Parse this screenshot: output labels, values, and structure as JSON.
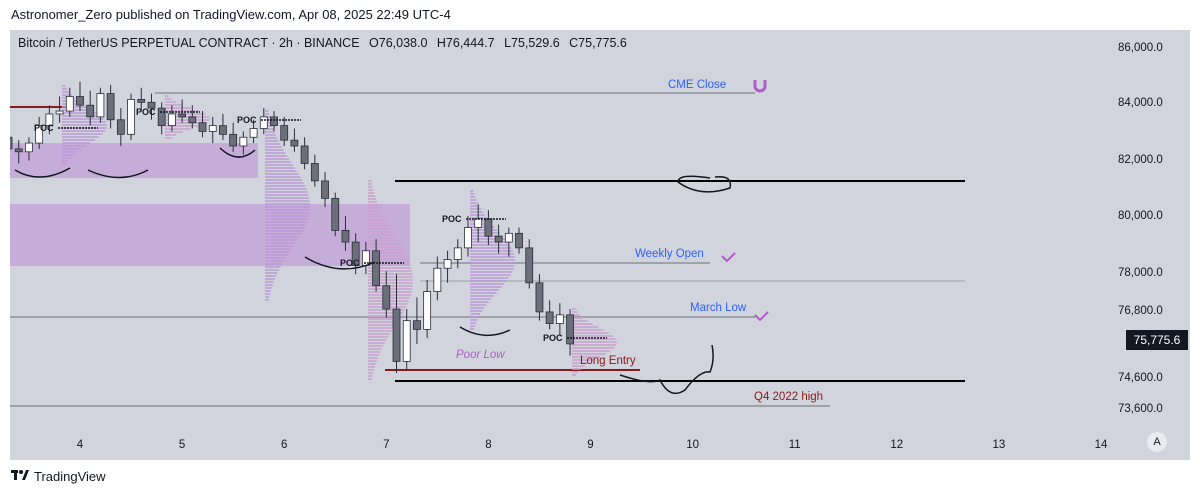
{
  "header": {
    "publisher_line": "Astronomer_Zero published on TradingView.com, Apr 08, 2025 22:49 UTC-4"
  },
  "symbol": {
    "name": "Bitcoin / TetherUS PERPETUAL CONTRACT · 2h · BINANCE",
    "open": "O76,038.0",
    "high": "H76,444.7",
    "low": "L75,529.6",
    "close": "C75,775.6"
  },
  "last_price_label": "75,775.6",
  "auto_scale_label": "A",
  "footer": {
    "brand": "TradingView"
  },
  "colors": {
    "background": "#d1d4dc",
    "up_candle": "#ffffff",
    "down_candle": "#6b6f7a",
    "zone": "#c4a6d8",
    "annotation_blue": "#2962ff",
    "annotation_red": "#8b1a1a",
    "annotation_purple": "#b05cc9"
  },
  "chart_data": {
    "type": "candlestick",
    "interval": "2h",
    "x_ticks": [
      "4",
      "5",
      "6",
      "7",
      "8",
      "9",
      "10",
      "11",
      "12",
      "13",
      "14"
    ],
    "y_ticks": [
      "86,000.0",
      "84,000.0",
      "82,000.0",
      "80,000.0",
      "78,000.0",
      "76,800.0",
      "74,600.0",
      "73,600.0"
    ],
    "ylim": [
      72700,
      86400
    ],
    "last_price": 75775.6,
    "candles": [
      [
        3.2,
        82700,
        83400,
        82200,
        82900
      ],
      [
        3.3,
        82900,
        83200,
        82300,
        82500
      ],
      [
        3.4,
        82500,
        82800,
        82000,
        82400
      ],
      [
        3.5,
        82400,
        82900,
        82100,
        82700
      ],
      [
        3.6,
        82700,
        83600,
        82500,
        83300
      ],
      [
        3.7,
        83300,
        84000,
        83000,
        83700
      ],
      [
        3.8,
        83700,
        84300,
        83400,
        83800
      ],
      [
        3.9,
        83800,
        84600,
        83600,
        84300
      ],
      [
        4.0,
        84300,
        84800,
        83800,
        84000
      ],
      [
        4.1,
        84000,
        84500,
        83300,
        83600
      ],
      [
        4.2,
        83600,
        84600,
        83400,
        84400
      ],
      [
        4.3,
        84400,
        84700,
        83200,
        83500
      ],
      [
        4.4,
        83500,
        83900,
        82600,
        83000
      ],
      [
        4.5,
        83000,
        84400,
        82800,
        84200
      ],
      [
        4.6,
        84200,
        84600,
        83800,
        84100
      ],
      [
        4.7,
        84100,
        84400,
        83500,
        83900
      ],
      [
        4.8,
        83900,
        84100,
        83000,
        83300
      ],
      [
        4.9,
        83300,
        84000,
        83100,
        83700
      ],
      [
        5.0,
        83700,
        84200,
        83400,
        83600
      ],
      [
        5.1,
        83600,
        84000,
        83200,
        83400
      ],
      [
        5.2,
        83400,
        83800,
        82900,
        83100
      ],
      [
        5.3,
        83100,
        83600,
        82700,
        83300
      ],
      [
        5.4,
        83300,
        83700,
        82800,
        83000
      ],
      [
        5.5,
        83000,
        83400,
        82400,
        82600
      ],
      [
        5.6,
        82600,
        83100,
        82300,
        82900
      ],
      [
        5.7,
        82900,
        83500,
        82700,
        83200
      ],
      [
        5.8,
        83200,
        83900,
        83000,
        83600
      ],
      [
        5.9,
        83600,
        83800,
        83100,
        83300
      ],
      [
        6.0,
        83300,
        83600,
        82600,
        82800
      ],
      [
        6.1,
        82800,
        83200,
        82400,
        82600
      ],
      [
        6.2,
        82600,
        82900,
        81800,
        82000
      ],
      [
        6.3,
        82000,
        82300,
        81200,
        81400
      ],
      [
        6.4,
        81400,
        81700,
        80500,
        80800
      ],
      [
        6.5,
        80800,
        81000,
        79500,
        79700
      ],
      [
        6.6,
        79700,
        80200,
        79000,
        79300
      ],
      [
        6.7,
        79300,
        79600,
        78200,
        78500
      ],
      [
        6.8,
        78500,
        79300,
        78200,
        79000
      ],
      [
        6.9,
        79000,
        79400,
        77600,
        77800
      ],
      [
        7.0,
        77800,
        78300,
        76700,
        77000
      ],
      [
        7.1,
        77000,
        78200,
        74800,
        75200
      ],
      [
        7.2,
        75200,
        77000,
        74900,
        76600
      ],
      [
        7.3,
        76600,
        77400,
        75800,
        76300
      ],
      [
        7.4,
        76300,
        78000,
        76000,
        77600
      ],
      [
        7.5,
        77600,
        78800,
        77300,
        78400
      ],
      [
        7.6,
        78400,
        79000,
        77900,
        78700
      ],
      [
        7.7,
        78700,
        79400,
        78400,
        79100
      ],
      [
        7.8,
        79100,
        80200,
        78800,
        79800
      ],
      [
        7.9,
        79800,
        80600,
        79300,
        80100
      ],
      [
        8.0,
        80100,
        80400,
        79200,
        79500
      ],
      [
        8.1,
        79500,
        79900,
        78900,
        79300
      ],
      [
        8.2,
        79300,
        79800,
        78800,
        79600
      ],
      [
        8.3,
        79600,
        79800,
        78900,
        79100
      ],
      [
        8.4,
        79100,
        79400,
        77700,
        77900
      ],
      [
        8.5,
        77900,
        78200,
        76600,
        76900
      ],
      [
        8.6,
        76900,
        77300,
        76300,
        76500
      ],
      [
        8.7,
        76500,
        77200,
        76100,
        76800
      ],
      [
        8.8,
        76800,
        77000,
        75400,
        75800
      ]
    ],
    "annotations": [
      {
        "text": "CME Close",
        "price": 84300
      },
      {
        "text": "Weekly Open",
        "price": 78300
      },
      {
        "text": "March Low",
        "price": 76700
      },
      {
        "text": "Q4 2022 high",
        "price": 73700
      },
      {
        "text": "Long Entry",
        "price": 75200
      },
      {
        "text": "Poor Low",
        "price": 75500
      }
    ],
    "poc_label": "POC"
  }
}
